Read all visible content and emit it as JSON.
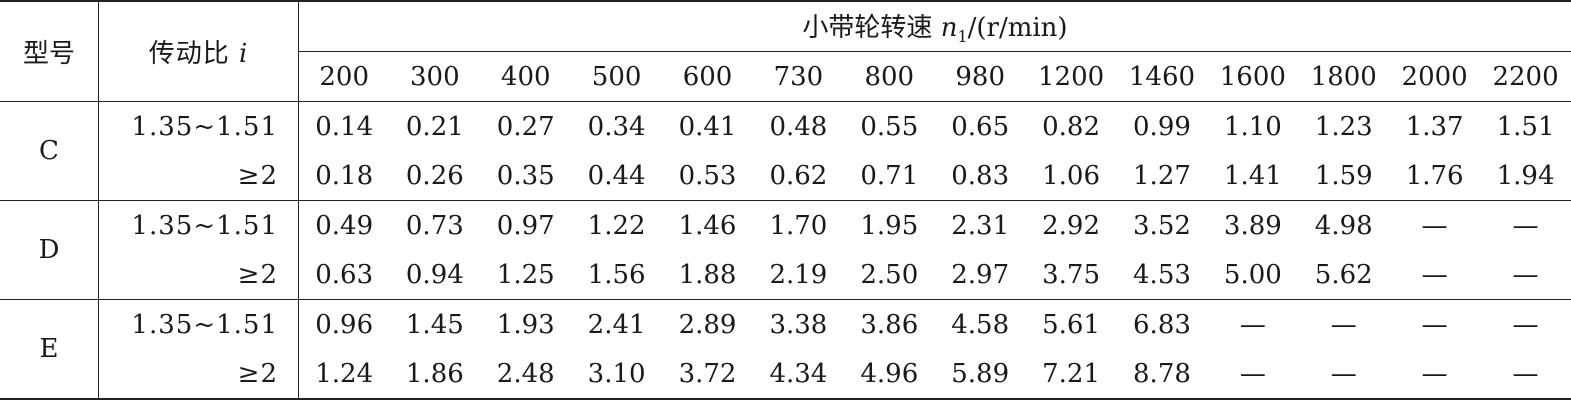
{
  "table": {
    "header": {
      "type": "型号",
      "ratio": {
        "text": "传动比",
        "symbol": "i"
      },
      "speed": {
        "text": "小带轮转速",
        "symbol": "n",
        "subscript": "1",
        "unit": "/(r/min)"
      },
      "speeds": [
        "200",
        "300",
        "400",
        "500",
        "600",
        "730",
        "800",
        "980",
        "1200",
        "1460",
        "1600",
        "1800",
        "2000",
        "2200"
      ]
    },
    "groups": [
      {
        "type": "C",
        "rows": [
          {
            "ratio": "1.35~1.51",
            "values": [
              "0.14",
              "0.21",
              "0.27",
              "0.34",
              "0.41",
              "0.48",
              "0.55",
              "0.65",
              "0.82",
              "0.99",
              "1.10",
              "1.23",
              "1.37",
              "1.51"
            ]
          },
          {
            "ratio": "≥2",
            "values": [
              "0.18",
              "0.26",
              "0.35",
              "0.44",
              "0.53",
              "0.62",
              "0.71",
              "0.83",
              "1.06",
              "1.27",
              "1.41",
              "1.59",
              "1.76",
              "1.94"
            ]
          }
        ]
      },
      {
        "type": "D",
        "rows": [
          {
            "ratio": "1.35~1.51",
            "values": [
              "0.49",
              "0.73",
              "0.97",
              "1.22",
              "1.46",
              "1.70",
              "1.95",
              "2.31",
              "2.92",
              "3.52",
              "3.89",
              "4.98",
              "—",
              "—"
            ]
          },
          {
            "ratio": "≥2",
            "values": [
              "0.63",
              "0.94",
              "1.25",
              "1.56",
              "1.88",
              "2.19",
              "2.50",
              "2.97",
              "3.75",
              "4.53",
              "5.00",
              "5.62",
              "—",
              "—"
            ]
          }
        ]
      },
      {
        "type": "E",
        "rows": [
          {
            "ratio": "1.35~1.51",
            "values": [
              "0.96",
              "1.45",
              "1.93",
              "2.41",
              "2.89",
              "3.38",
              "3.86",
              "4.58",
              "5.61",
              "6.83",
              "—",
              "—",
              "—",
              "—"
            ]
          },
          {
            "ratio": "≥2",
            "values": [
              "1.24",
              "1.86",
              "2.48",
              "3.10",
              "3.72",
              "4.34",
              "4.96",
              "5.89",
              "7.21",
              "8.78",
              "—",
              "—",
              "—",
              "—"
            ]
          }
        ]
      }
    ]
  }
}
